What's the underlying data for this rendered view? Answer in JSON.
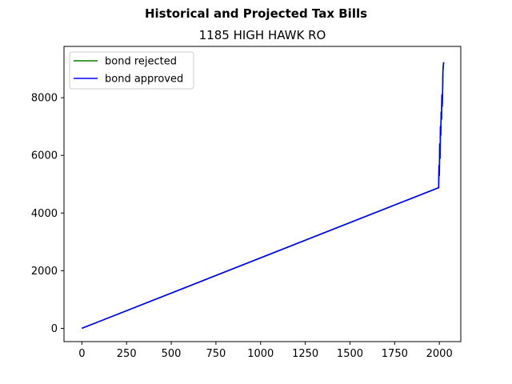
{
  "chart_data": {
    "type": "line",
    "suptitle": "Historical and Projected Tax Bills",
    "title": "1185 HIGH HAWK RO",
    "xlabel": "",
    "ylabel": "",
    "xlim": [
      -100,
      2120
    ],
    "ylim": [
      -460,
      9780
    ],
    "xticks": [
      0,
      250,
      500,
      750,
      1000,
      1250,
      1500,
      1750,
      2000
    ],
    "yticks": [
      0,
      2000,
      4000,
      6000,
      8000
    ],
    "grid": false,
    "legend_position": "upper-left",
    "series": [
      {
        "name": "bond rejected",
        "color": "#008000",
        "x": [
          0,
          1996,
          1998,
          2000,
          2002,
          2004,
          2006,
          2008,
          2010,
          2012,
          2014,
          2016,
          2018,
          2020,
          2022,
          2024
        ],
        "y": [
          0,
          4880,
          5650,
          5300,
          6400,
          5900,
          7000,
          6700,
          7500,
          7250,
          8100,
          7700,
          8150,
          8900,
          9100,
          9230
        ]
      },
      {
        "name": "bond approved",
        "color": "#0000ff",
        "x": [
          0,
          1996,
          1998,
          2000,
          2002,
          2004,
          2006,
          2008,
          2010,
          2012,
          2014,
          2016,
          2018,
          2020,
          2022,
          2024
        ],
        "y": [
          0,
          4880,
          5650,
          5300,
          6400,
          5900,
          7000,
          6700,
          7500,
          7250,
          8100,
          7700,
          8150,
          8900,
          9100,
          9230
        ]
      }
    ]
  }
}
